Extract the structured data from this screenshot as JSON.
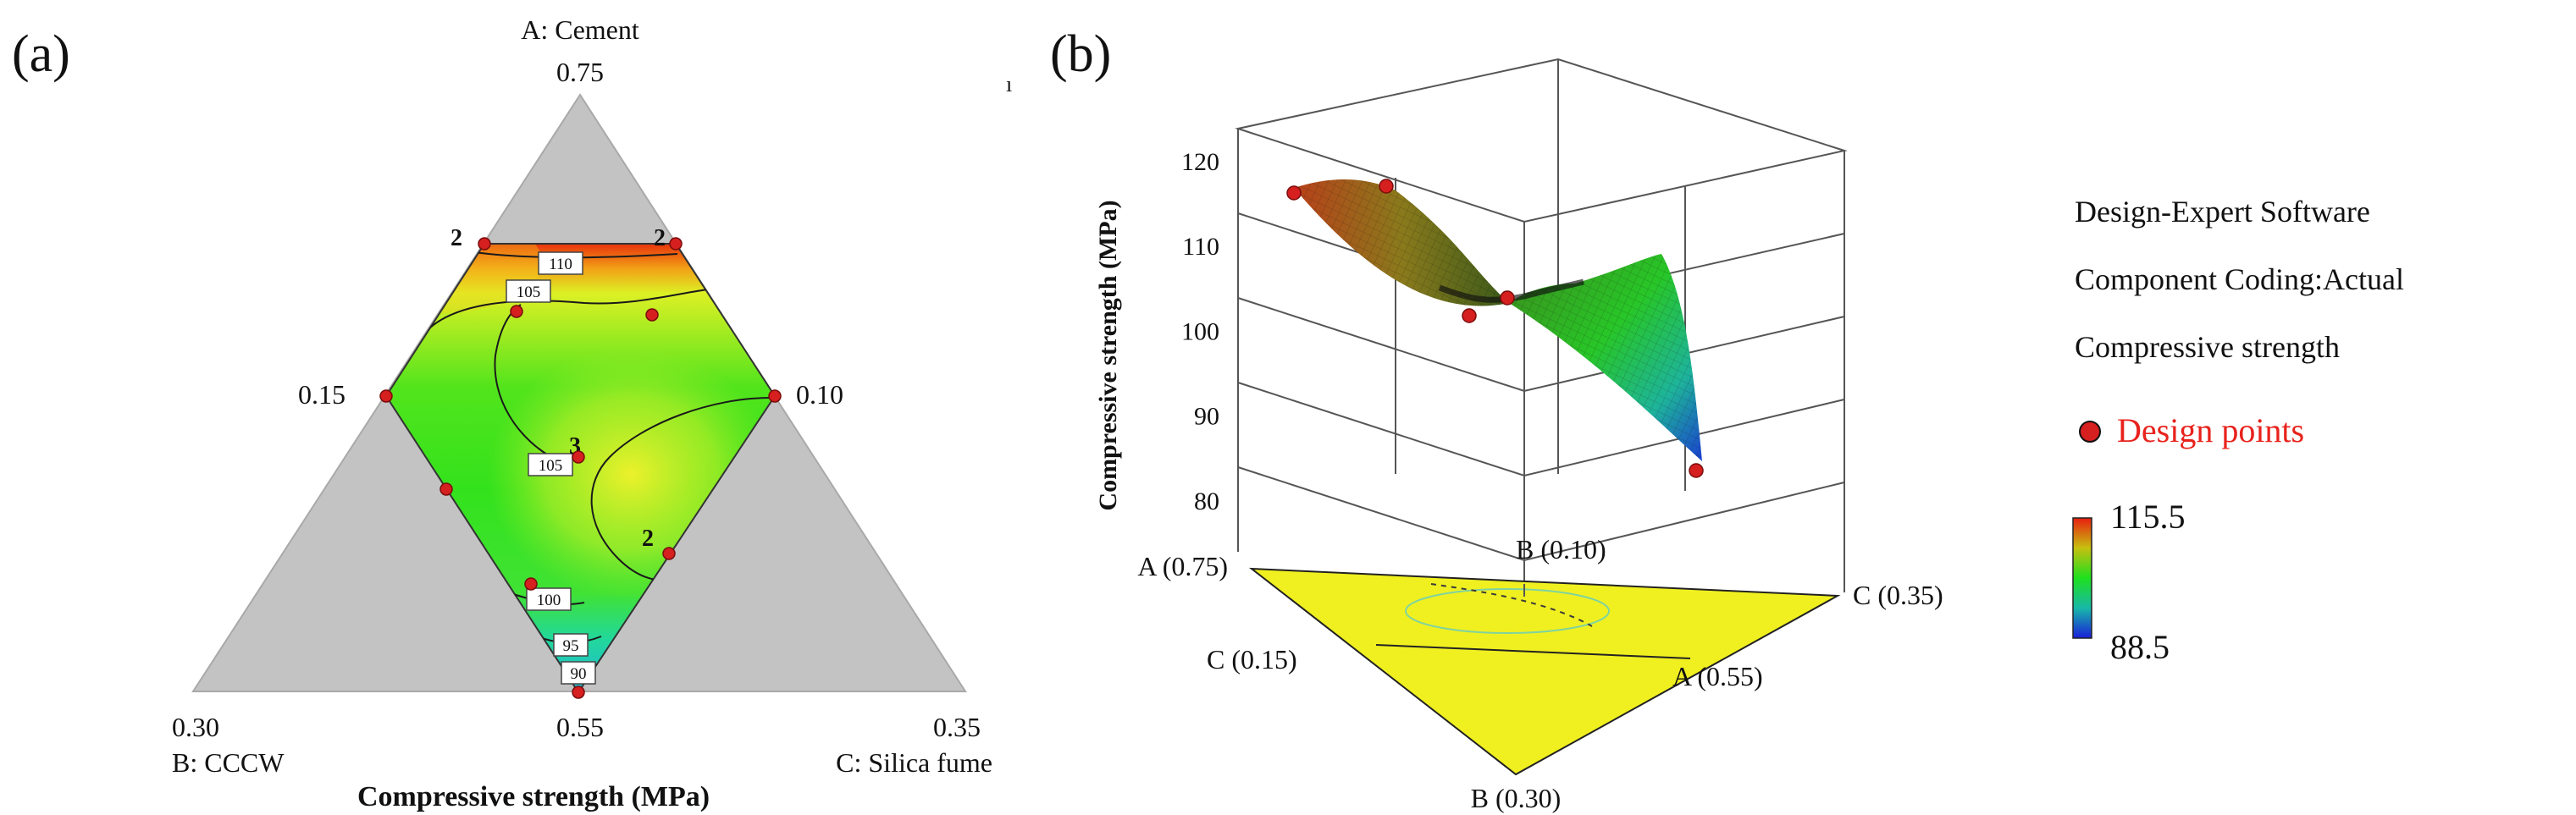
{
  "panel_a": {
    "label": "(a)",
    "vertex_top": {
      "name": "A: Cement",
      "value": "0.75"
    },
    "vertex_left": {
      "name": "B: CCCW",
      "value": "0.30"
    },
    "vertex_right": {
      "name": "C: Silica fume",
      "value": "0.35"
    },
    "edge_left_value": "0.15",
    "edge_right_value": "0.10",
    "bottom_value": "0.55",
    "title": "Compressive strength (MPa)"
  },
  "panel_b": {
    "label": "(b)",
    "axis_z_title": "Compressive strength (MPa)",
    "stray_mark": "ı",
    "base_labels": {
      "a_high": "A (0.75)",
      "b_low": "B (0.10)",
      "c_high": "C (0.35)",
      "c_low": "C (0.15)",
      "a_low": "A (0.55)",
      "b_high": "B (0.30)"
    }
  },
  "legend": {
    "lines": [
      "Design-Expert Software",
      "Component Coding:Actual",
      "Compressive strength"
    ],
    "design_points_label": "Design points",
    "scale_max": "115.5",
    "scale_min": "88.5",
    "colors": {
      "high": "#e81e10",
      "mid": "#1ee01e",
      "low": "#1a1fd9",
      "design_point": "#d61f1f",
      "gray_region": "#c3c3c3",
      "base_plane": "#f0f020"
    }
  },
  "chart_data": [
    {
      "type": "contour",
      "subtype": "ternary mixture contour plot",
      "title": "Compressive strength (MPa)",
      "components": [
        {
          "name": "A: Cement",
          "range": [
            0.55,
            0.75
          ]
        },
        {
          "name": "B: CCCW",
          "range": [
            0.1,
            0.3
          ]
        },
        {
          "name": "C: Silica fume",
          "range": [
            0.15,
            0.35
          ]
        }
      ],
      "contour_labels": [
        110,
        105,
        105,
        100,
        95,
        90
      ],
      "replicate_labels": [
        "2",
        "2",
        "3",
        "2"
      ],
      "design_points_count": 11
    },
    {
      "type": "surface3d",
      "zlabel": "Compressive strength (MPa)",
      "z_ticks": [
        80,
        90,
        100,
        110,
        120
      ],
      "zlim": [
        75,
        120
      ],
      "surface_range": [
        88.5,
        115.5
      ],
      "colorbar": {
        "max": 115.5,
        "min": 88.5
      }
    }
  ]
}
